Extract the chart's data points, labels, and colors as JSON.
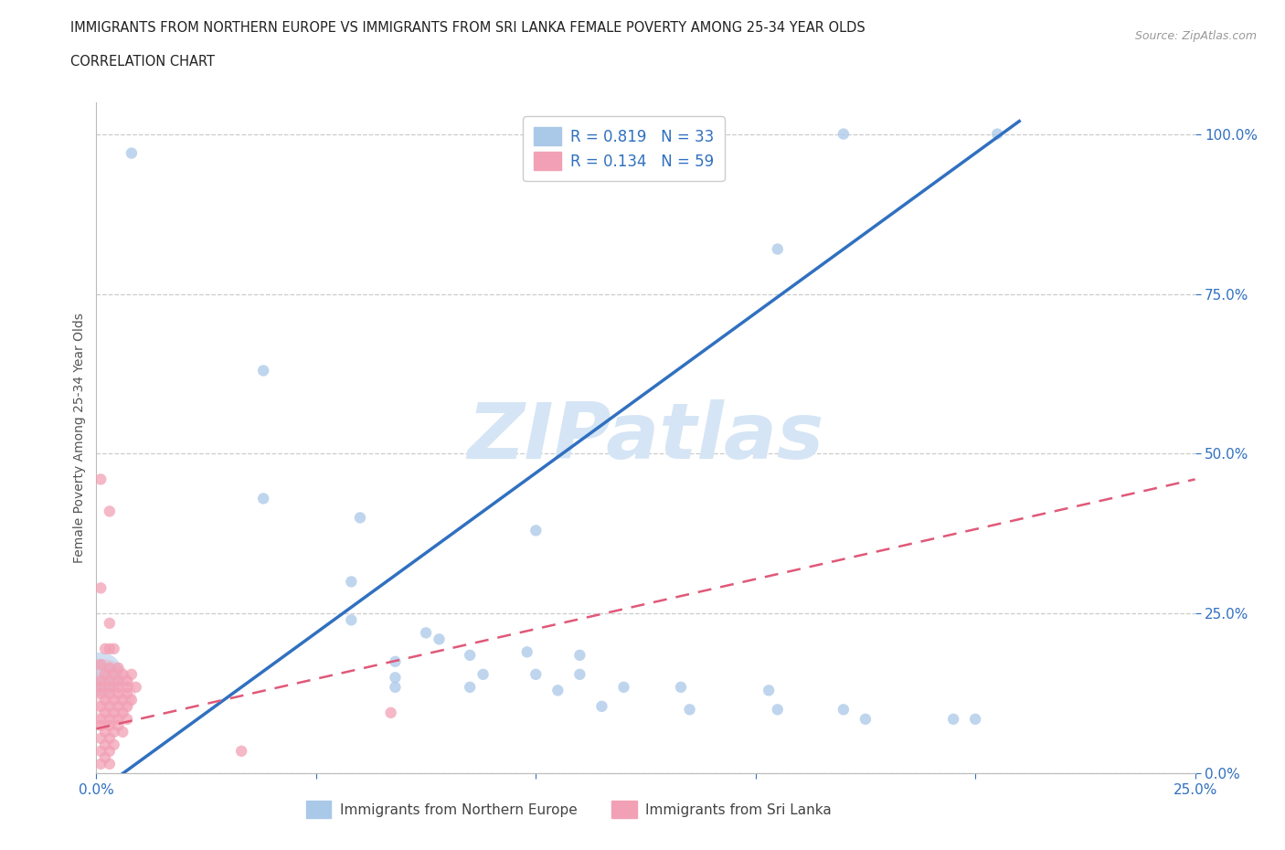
{
  "title_line1": "IMMIGRANTS FROM NORTHERN EUROPE VS IMMIGRANTS FROM SRI LANKA FEMALE POVERTY AMONG 25-34 YEAR OLDS",
  "title_line2": "CORRELATION CHART",
  "source_text": "Source: ZipAtlas.com",
  "ylabel": "Female Poverty Among 25-34 Year Olds",
  "xlim": [
    0.0,
    0.25
  ],
  "ylim": [
    0.0,
    1.05
  ],
  "x_tick_vals": [
    0.0,
    0.05,
    0.1,
    0.15,
    0.2,
    0.25
  ],
  "x_tick_labels": [
    "0.0%",
    "",
    "",
    "",
    "",
    "25.0%"
  ],
  "y_tick_vals": [
    0.0,
    0.25,
    0.5,
    0.75,
    1.0
  ],
  "y_tick_labels": [
    "0.0%",
    "25.0%",
    "50.0%",
    "75.0%",
    "100.0%"
  ],
  "watermark": "ZIPatlas",
  "legend_line1": "R = 0.819   N = 33",
  "legend_line2": "R = 0.134   N = 59",
  "legend_label1": "Immigrants from Northern Europe",
  "legend_label2": "Immigrants from Sri Lanka",
  "blue_color": "#aac8e8",
  "pink_color": "#f2a0b5",
  "blue_line_color": "#3070c0",
  "pink_line_color": "#e05878",
  "legend_text_color": "#3070c0",
  "tick_color": "#3070c0",
  "grid_color": "#cccccc",
  "background_color": "#ffffff",
  "watermark_color": "#d5e5f5",
  "title_color": "#222222",
  "source_color": "#999999",
  "ylabel_color": "#555555",
  "blue_scatter": [
    [
      0.008,
      0.97
    ],
    [
      0.17,
      1.0
    ],
    [
      0.205,
      1.0
    ],
    [
      0.155,
      0.82
    ],
    [
      0.038,
      0.63
    ],
    [
      0.038,
      0.43
    ],
    [
      0.06,
      0.4
    ],
    [
      0.058,
      0.3
    ],
    [
      0.058,
      0.24
    ],
    [
      0.075,
      0.22
    ],
    [
      0.078,
      0.21
    ],
    [
      0.068,
      0.175
    ],
    [
      0.085,
      0.185
    ],
    [
      0.098,
      0.19
    ],
    [
      0.11,
      0.185
    ],
    [
      0.068,
      0.15
    ],
    [
      0.088,
      0.155
    ],
    [
      0.1,
      0.155
    ],
    [
      0.11,
      0.155
    ],
    [
      0.068,
      0.135
    ],
    [
      0.085,
      0.135
    ],
    [
      0.105,
      0.13
    ],
    [
      0.12,
      0.135
    ],
    [
      0.133,
      0.135
    ],
    [
      0.153,
      0.13
    ],
    [
      0.115,
      0.105
    ],
    [
      0.135,
      0.1
    ],
    [
      0.155,
      0.1
    ],
    [
      0.17,
      0.1
    ],
    [
      0.175,
      0.085
    ],
    [
      0.195,
      0.085
    ],
    [
      0.2,
      0.085
    ],
    [
      0.1,
      0.38
    ]
  ],
  "blue_sizes": [
    80,
    80,
    80,
    80,
    80,
    80,
    80,
    80,
    80,
    80,
    80,
    80,
    80,
    80,
    80,
    80,
    80,
    80,
    80,
    80,
    80,
    80,
    80,
    80,
    80,
    80,
    80,
    80,
    80,
    80,
    80,
    80,
    80
  ],
  "blue_large": [
    [
      0.001,
      0.155
    ]
  ],
  "blue_large_size": [
    1200
  ],
  "pink_scatter": [
    [
      0.001,
      0.46
    ],
    [
      0.003,
      0.41
    ],
    [
      0.001,
      0.29
    ],
    [
      0.003,
      0.235
    ],
    [
      0.002,
      0.195
    ],
    [
      0.003,
      0.195
    ],
    [
      0.004,
      0.195
    ],
    [
      0.001,
      0.17
    ],
    [
      0.003,
      0.165
    ],
    [
      0.005,
      0.165
    ],
    [
      0.002,
      0.155
    ],
    [
      0.004,
      0.155
    ],
    [
      0.006,
      0.155
    ],
    [
      0.008,
      0.155
    ],
    [
      0.001,
      0.145
    ],
    [
      0.003,
      0.145
    ],
    [
      0.005,
      0.145
    ],
    [
      0.007,
      0.145
    ],
    [
      0.001,
      0.135
    ],
    [
      0.003,
      0.135
    ],
    [
      0.005,
      0.135
    ],
    [
      0.007,
      0.135
    ],
    [
      0.009,
      0.135
    ],
    [
      0.001,
      0.125
    ],
    [
      0.003,
      0.125
    ],
    [
      0.005,
      0.125
    ],
    [
      0.007,
      0.125
    ],
    [
      0.002,
      0.115
    ],
    [
      0.004,
      0.115
    ],
    [
      0.006,
      0.115
    ],
    [
      0.008,
      0.115
    ],
    [
      0.001,
      0.105
    ],
    [
      0.003,
      0.105
    ],
    [
      0.005,
      0.105
    ],
    [
      0.007,
      0.105
    ],
    [
      0.002,
      0.095
    ],
    [
      0.004,
      0.095
    ],
    [
      0.006,
      0.095
    ],
    [
      0.001,
      0.085
    ],
    [
      0.003,
      0.085
    ],
    [
      0.005,
      0.085
    ],
    [
      0.007,
      0.085
    ],
    [
      0.001,
      0.075
    ],
    [
      0.003,
      0.075
    ],
    [
      0.005,
      0.075
    ],
    [
      0.002,
      0.065
    ],
    [
      0.004,
      0.065
    ],
    [
      0.006,
      0.065
    ],
    [
      0.001,
      0.055
    ],
    [
      0.003,
      0.055
    ],
    [
      0.002,
      0.045
    ],
    [
      0.004,
      0.045
    ],
    [
      0.001,
      0.035
    ],
    [
      0.003,
      0.035
    ],
    [
      0.002,
      0.025
    ],
    [
      0.001,
      0.015
    ],
    [
      0.003,
      0.015
    ],
    [
      0.033,
      0.035
    ],
    [
      0.067,
      0.095
    ]
  ],
  "pink_sizes": [
    80,
    80,
    80,
    80,
    80,
    80,
    80,
    80,
    80,
    80,
    80,
    80,
    80,
    80,
    80,
    80,
    80,
    80,
    80,
    80,
    80,
    80,
    80,
    80,
    80,
    80,
    80,
    80,
    80,
    80,
    80,
    80,
    80,
    80,
    80,
    80,
    80,
    80,
    80,
    80,
    80,
    80,
    80,
    80,
    80,
    80,
    80,
    80,
    80,
    80,
    80,
    80,
    80,
    80,
    80,
    80,
    80,
    80,
    80
  ],
  "pink_large": [
    [
      0.001,
      0.125
    ]
  ],
  "pink_large_size": [
    3000
  ],
  "blue_line_x": [
    0.0,
    0.21
  ],
  "blue_line_y": [
    -0.03,
    1.02
  ],
  "pink_line_x": [
    0.0,
    0.25
  ],
  "pink_line_y": [
    0.07,
    0.46
  ]
}
